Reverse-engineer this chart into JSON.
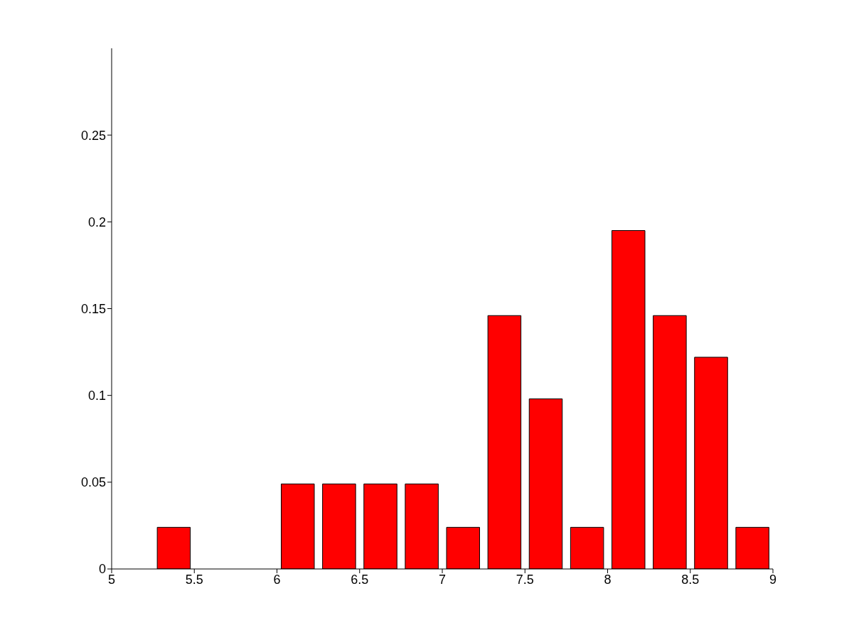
{
  "chart_data": {
    "type": "histogram",
    "bins": [
      5.25,
      5.5,
      5.75,
      6.0,
      6.25,
      6.5,
      6.75,
      7.0,
      7.25,
      7.5,
      7.75,
      8.0,
      8.25,
      8.5,
      8.75,
      9.0
    ],
    "values": [
      0.024,
      0,
      0,
      0.049,
      0.049,
      0.049,
      0.049,
      0.024,
      0.146,
      0.098,
      0.024,
      0.195,
      0.146,
      0.122,
      0.024
    ],
    "color": "#ff0000",
    "xlim": [
      5,
      9
    ],
    "xticks": [
      5,
      5.5,
      6,
      6.5,
      7,
      7.5,
      8,
      8.5,
      9
    ],
    "ylim": [
      0,
      0.3
    ],
    "yticks": [
      0,
      0.05,
      0.1,
      0.15,
      0.2,
      0.25
    ],
    "grid": false
  }
}
